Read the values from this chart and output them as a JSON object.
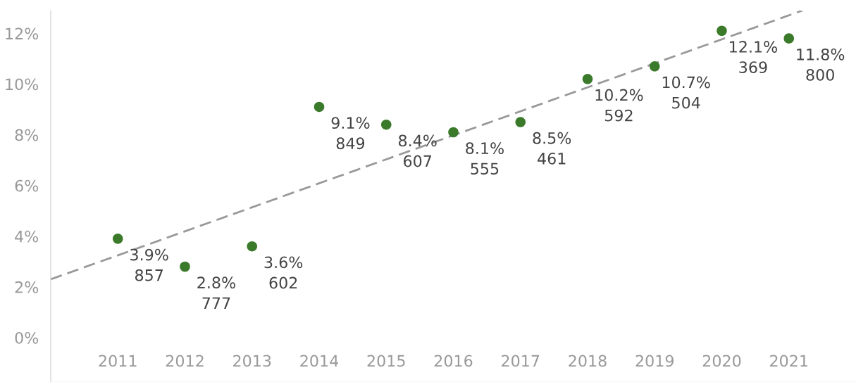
{
  "chart_data": {
    "type": "scatter",
    "x": [
      2011,
      2012,
      2013,
      2014,
      2015,
      2016,
      2017,
      2018,
      2019,
      2020,
      2021
    ],
    "xlim": [
      2010,
      2022
    ],
    "xticks": [
      2011,
      2012,
      2013,
      2014,
      2015,
      2016,
      2017,
      2018,
      2019,
      2020,
      2021
    ],
    "ylim": [
      -1.75,
      12.9
    ],
    "yticks": [
      {
        "value": 0,
        "label": "0%"
      },
      {
        "value": 2,
        "label": "2%"
      },
      {
        "value": 4,
        "label": "4%"
      },
      {
        "value": 6,
        "label": "6%"
      },
      {
        "value": 8,
        "label": "8%"
      },
      {
        "value": 10,
        "label": "10%"
      },
      {
        "value": 12,
        "label": "12%"
      }
    ],
    "grid": false,
    "legend": false,
    "series": [
      {
        "marker": "circle",
        "color": "#3b7a2a",
        "values": [
          3.9,
          2.8,
          3.6,
          9.1,
          8.4,
          8.1,
          8.5,
          10.2,
          10.7,
          12.1,
          11.8
        ],
        "value_labels": [
          "3.9%\n857",
          "2.8%\n777",
          "3.6%\n602",
          "9.1%\n849",
          "8.4%\n607",
          "8.1%\n555",
          "8.5%\n461",
          "10.2%\n592",
          "10.7%\n504",
          "12.1%\n369",
          "11.8%\n800"
        ]
      },
      {
        "type": "line",
        "color": "#999999",
        "line_style": "dashed",
        "x": [
          2010,
          2021.2
        ],
        "values": [
          2.3,
          12.9
        ]
      }
    ]
  }
}
